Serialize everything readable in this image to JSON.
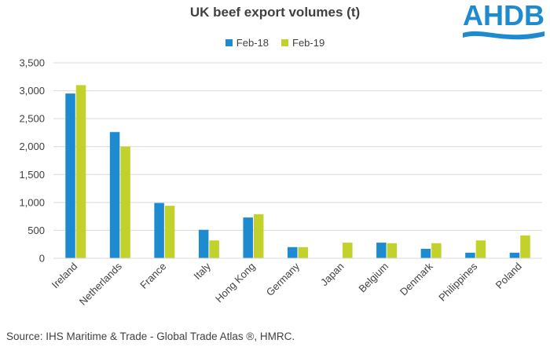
{
  "logo": {
    "text": "AHDB",
    "color": "#1e8bd0"
  },
  "source": "Source: IHS Maritime & Trade - Global Trade Atlas ®, HMRC.",
  "chart_data": {
    "type": "bar",
    "title": "UK beef export volumes (t)",
    "categories": [
      "Ireland",
      "Netherlands",
      "France",
      "Italy",
      "Hong Kong",
      "Germany",
      "Japan",
      "Belgium",
      "Denmark",
      "Philippines",
      "Poland"
    ],
    "series": [
      {
        "name": "Feb-18",
        "color": "#1e8bd0",
        "values": [
          2950,
          2260,
          990,
          510,
          730,
          200,
          0,
          280,
          170,
          100,
          100
        ]
      },
      {
        "name": "Feb-19",
        "color": "#c3d12c",
        "values": [
          3100,
          2000,
          940,
          320,
          790,
          200,
          280,
          270,
          270,
          320,
          410
        ]
      }
    ],
    "ylim": [
      0,
      3500
    ],
    "yticks": [
      0,
      500,
      1000,
      1500,
      2000,
      2500,
      3000,
      3500
    ],
    "ytick_labels": [
      "0",
      "500",
      "1,000",
      "1,500",
      "2,000",
      "2,500",
      "3,000",
      "3,500"
    ],
    "grid": true,
    "legend_position": "top-center"
  }
}
